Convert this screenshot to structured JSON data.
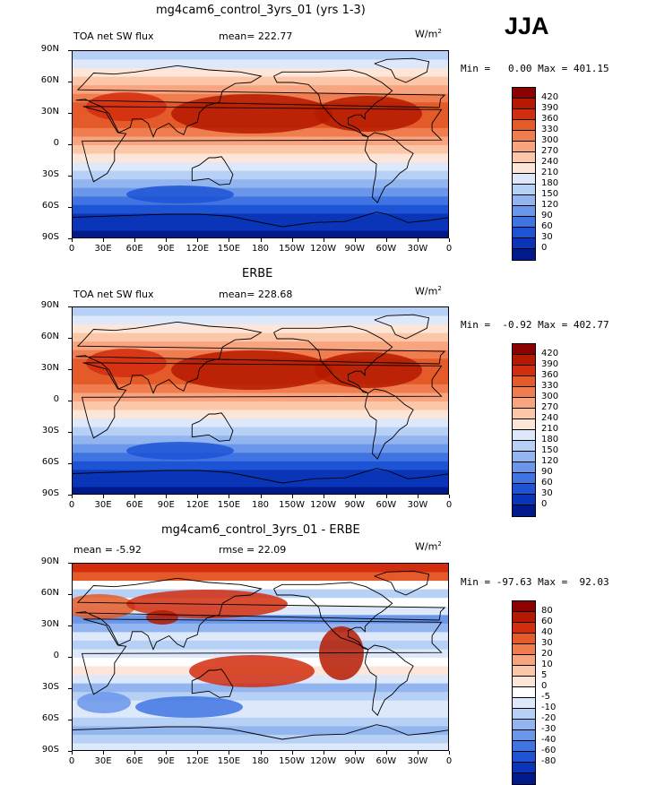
{
  "season": "JJA",
  "units_text": "W/m",
  "units_exp": "2",
  "axes": {
    "lat": [
      "90N",
      "60N",
      "30N",
      "0",
      "30S",
      "60S",
      "90S"
    ],
    "lon": [
      "0",
      "30E",
      "60E",
      "90E",
      "120E",
      "150E",
      "180",
      "150W",
      "120W",
      "90W",
      "60W",
      "30W",
      "0"
    ]
  },
  "colors": {
    "abs": [
      "#8b0000",
      "#b51a00",
      "#d22d0e",
      "#e45a28",
      "#f07d50",
      "#f8a47f",
      "#fcc7a9",
      "#fde6d8",
      "#dde9fb",
      "#b7d0f5",
      "#92b5ef",
      "#6a97ea",
      "#3f74e2",
      "#1d54d6",
      "#0b35b8",
      "#001a8c"
    ],
    "diff": [
      "#8b0000",
      "#b51a00",
      "#d22d0e",
      "#e45a28",
      "#f07d50",
      "#f8a47f",
      "#fcc7a9",
      "#fde6d8",
      "#ffffff",
      "#dde9fb",
      "#b7d0f5",
      "#92b5ef",
      "#6a97ea",
      "#3f74e2",
      "#1d54d6",
      "#0b35b8",
      "#001a8c"
    ]
  },
  "panels": [
    {
      "title": "mg4cam6_control_3yrs_01 (yrs 1-3)",
      "left_label": "TOA net SW flux",
      "center_label": "mean= 222.77",
      "minmax": "Min =   0.00 Max = 401.15"
    },
    {
      "title": "ERBE",
      "left_label": "TOA net SW flux",
      "center_label": "mean= 228.68",
      "minmax": "Min =  -0.92 Max = 402.77"
    },
    {
      "title": "mg4cam6_control_3yrs_01 - ERBE",
      "left_label": "mean =  -5.92",
      "center_label": "rmse =  22.09",
      "minmax": "Min = -97.63 Max =  92.03"
    }
  ],
  "chart_data": [
    {
      "type": "heatmap",
      "title": "mg4cam6_control_3yrs_01 (yrs 1-3)",
      "field": "TOA net SW flux",
      "units": "W/m2",
      "mean": 222.77,
      "min": 0.0,
      "max": 401.15,
      "xlabel": "",
      "ylabel": "",
      "xlim": [
        0,
        360
      ],
      "ylim": [
        -90,
        90
      ],
      "colorbar_levels": [
        "420",
        "390",
        "360",
        "330",
        "300",
        "270",
        "240",
        "210",
        "180",
        "150",
        "120",
        "90",
        "60",
        "30",
        "0"
      ]
    },
    {
      "type": "heatmap",
      "title": "ERBE",
      "field": "TOA net SW flux",
      "units": "W/m2",
      "mean": 228.68,
      "min": -0.92,
      "max": 402.77,
      "xlim": [
        0,
        360
      ],
      "ylim": [
        -90,
        90
      ],
      "colorbar_levels": [
        "420",
        "390",
        "360",
        "330",
        "300",
        "270",
        "240",
        "210",
        "180",
        "150",
        "120",
        "90",
        "60",
        "30",
        "0"
      ]
    },
    {
      "type": "heatmap",
      "title": "mg4cam6_control_3yrs_01 - ERBE",
      "units": "W/m2",
      "mean": -5.92,
      "rmse": 22.09,
      "min": -97.63,
      "max": 92.03,
      "xlim": [
        0,
        360
      ],
      "ylim": [
        -90,
        90
      ],
      "colorbar_levels": [
        "80",
        "60",
        "40",
        "30",
        "20",
        "10",
        "5",
        "0",
        "-5",
        "-10",
        "-20",
        "-30",
        "-40",
        "-60",
        "-80"
      ]
    }
  ]
}
